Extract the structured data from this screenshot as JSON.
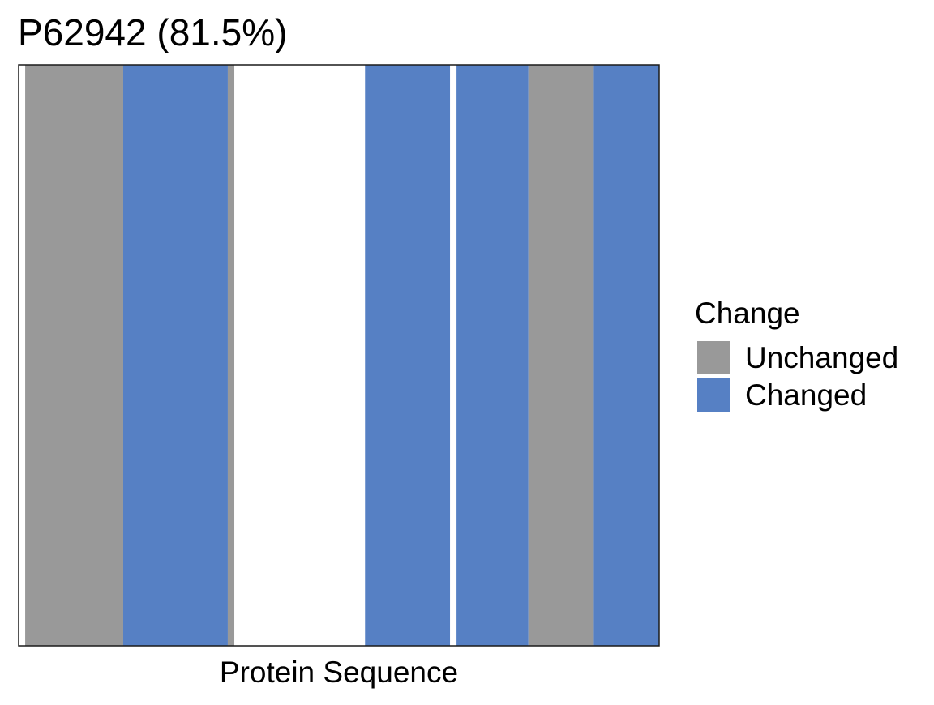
{
  "chart_data": {
    "type": "bar",
    "title": "P62942 (81.5%)",
    "xlabel": "Protein Sequence",
    "ylabel": "",
    "xlim": [
      0,
      98
    ],
    "legend": {
      "title": "Change",
      "placement": "right",
      "entries": [
        {
          "label": "Unchanged",
          "color": "#999999"
        },
        {
          "label": "Changed",
          "color": "#5680C4"
        }
      ]
    },
    "grid": false,
    "segments": [
      {
        "start": 1,
        "end": 16,
        "category": "Unchanged"
      },
      {
        "start": 16,
        "end": 32,
        "category": "Changed"
      },
      {
        "start": 32,
        "end": 33,
        "category": "Unchanged"
      },
      {
        "start": 53,
        "end": 66,
        "category": "Changed"
      },
      {
        "start": 67,
        "end": 78,
        "category": "Changed"
      },
      {
        "start": 78,
        "end": 88,
        "category": "Unchanged"
      },
      {
        "start": 88,
        "end": 98,
        "category": "Changed"
      }
    ]
  }
}
